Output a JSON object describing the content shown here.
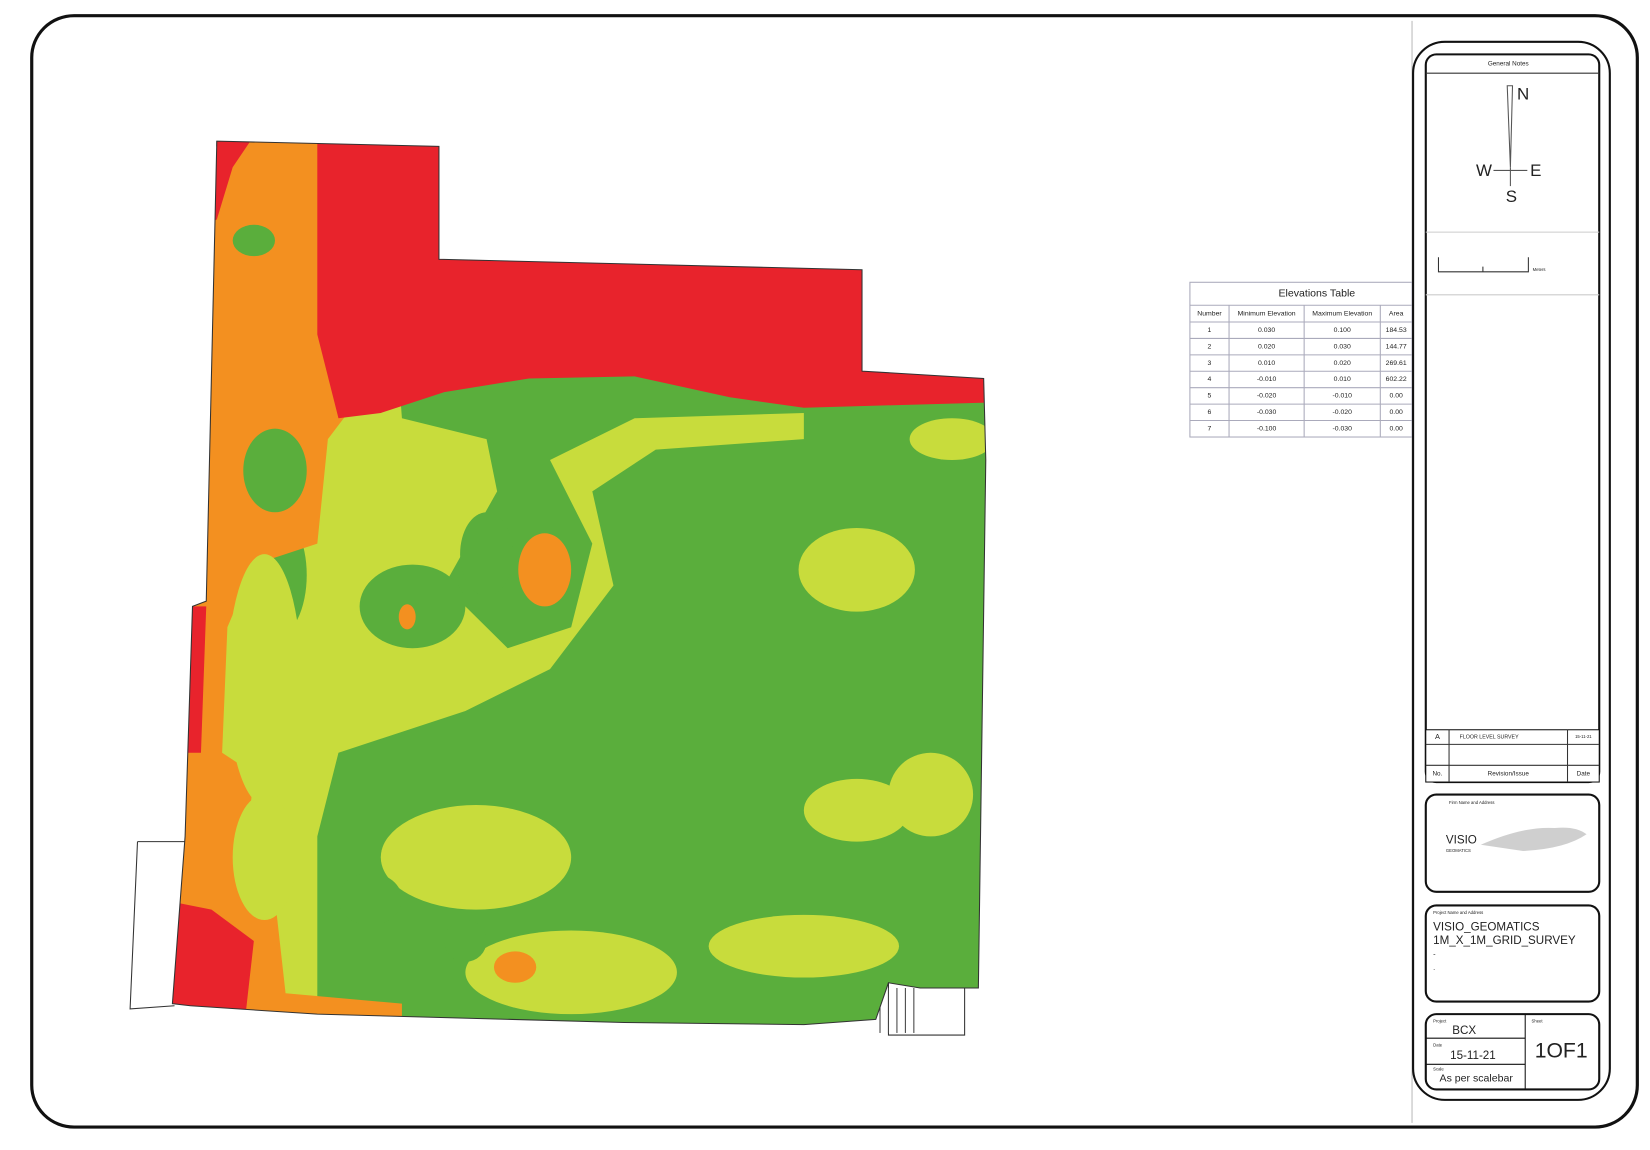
{
  "general_notes": "General Notes",
  "compass": {
    "n": "N",
    "e": "E",
    "s": "S",
    "w": "W"
  },
  "scale_bar": {
    "unit": "Meters"
  },
  "elevations_table": {
    "title": "Elevations Table",
    "columns": [
      "Number",
      "Minimum Elevation",
      "Maximum Elevation",
      "Area"
    ],
    "rows": [
      [
        "1",
        "0.030",
        "0.100",
        "184.53"
      ],
      [
        "2",
        "0.020",
        "0.030",
        "144.77"
      ],
      [
        "3",
        "0.010",
        "0.020",
        "269.61"
      ],
      [
        "4",
        "-0.010",
        "0.010",
        "602.22"
      ],
      [
        "5",
        "-0.020",
        "-0.010",
        "0.00"
      ],
      [
        "6",
        "-0.030",
        "-0.020",
        "0.00"
      ],
      [
        "7",
        "-0.100",
        "-0.030",
        "0.00"
      ]
    ]
  },
  "revisions": {
    "rows": [
      [
        "A",
        "FLOOR LEVEL SURVEY",
        "15-11-21"
      ]
    ],
    "header": [
      "No.",
      "Revision/Issue",
      "Date"
    ]
  },
  "firm": {
    "label": "Firm Name and Address",
    "name": "VISIO",
    "sub": "GEOMATICS"
  },
  "project": {
    "label": "Project Name and Address",
    "lines": [
      "VISIO_GEOMATICS",
      "1M_X_1M_GRID_SURVEY",
      "-",
      "."
    ]
  },
  "sheet_info": {
    "project_label": "Project",
    "project": "BCX",
    "date_label": "Date",
    "date": "15-11-21",
    "scale_label": "Scale",
    "scale": "As per scalebar",
    "sheet_label": "Sheet",
    "sheet": "1OF1"
  }
}
